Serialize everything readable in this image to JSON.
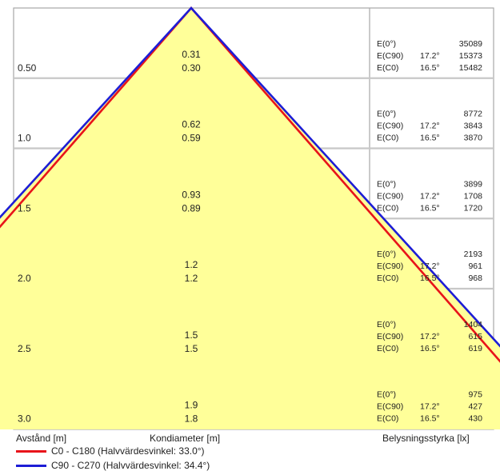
{
  "chart_data": {
    "type": "beam-cone",
    "distances": [
      "0.50",
      "1.0",
      "1.5",
      "2.0",
      "2.5",
      "3.0"
    ],
    "diameters_c90": [
      "0.31",
      "0.62",
      "0.93",
      "1.2",
      "1.5",
      "1.9"
    ],
    "diameters_c0": [
      "0.30",
      "0.59",
      "0.89",
      "1.2",
      "1.5",
      "1.8"
    ],
    "illuminance": [
      {
        "e0": "35089",
        "c90_angle": "17.2°",
        "c90": "15373",
        "c0_angle": "16.5°",
        "c0": "15482"
      },
      {
        "e0": "8772",
        "c90_angle": "17.2°",
        "c90": "3843",
        "c0_angle": "16.5°",
        "c0": "3870"
      },
      {
        "e0": "3899",
        "c90_angle": "17.2°",
        "c90": "1708",
        "c0_angle": "16.5°",
        "c0": "1720"
      },
      {
        "e0": "2193",
        "c90_angle": "17.2°",
        "c90": "961",
        "c0_angle": "16.5°",
        "c0": "968"
      },
      {
        "e0": "1404",
        "c90_angle": "17.2°",
        "c90": "615",
        "c0_angle": "16.5°",
        "c0": "619"
      },
      {
        "e0": "975",
        "c90_angle": "17.2°",
        "c90": "427",
        "c0_angle": "16.5°",
        "c0": "430"
      }
    ],
    "row_labels": {
      "e0": "E(0°)",
      "ec90": "E(C90)",
      "ec0": "E(C0)"
    },
    "half_angles_deg": {
      "c0_c180": 16.5,
      "c90_c270": 17.2
    },
    "xlabel": "Avstånd [m]",
    "center_label": "Kondiameter [m]",
    "right_label": "Belysningsstyrka [lx]",
    "series": [
      {
        "name": "C0 - C180 (Halvvärdesvinkel: 33.0°)",
        "color": "#e8141a"
      },
      {
        "name": "C90 - C270 (Halvvärdesvinkel: 34.4°)",
        "color": "#1d1dd6"
      }
    ],
    "colors": {
      "fill": "#ffff99",
      "grid": "#c8c8c8",
      "frame": "#a8a8a8"
    }
  }
}
